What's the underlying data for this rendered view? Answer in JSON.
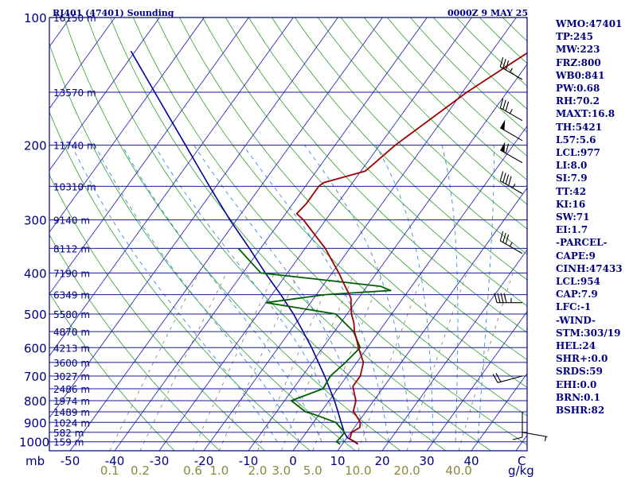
{
  "header": {
    "station": "RJ401 (47401) Sounding",
    "time": "0000Z  9 MAY 25"
  },
  "colors": {
    "frame": "#000080",
    "temperature": "#a00000",
    "dewpoint": "#006000",
    "parcel": "#0000a0",
    "isotherm": "#2d2db4",
    "dry_adiabat": "#2e9e2e",
    "moist_adiabat": "#3c8cd2",
    "mixing_ratio": "#808060",
    "mixing_ratio_label": "#8a8a3c",
    "stats_text": "#000080"
  },
  "stats": [
    "WMO:47401",
    "TP:245",
    "MW:223",
    "FRZ:800",
    "WB0:841",
    "PW:0.68",
    "RH:70.2",
    "MAXT:16.8",
    "TH:5421",
    "L57:5.6",
    "LCL:977",
    "LI:8.0",
    "SI:7.9",
    "TT:42",
    "KI:16",
    "SW:71",
    "EI:1.7",
    "-PARCEL-",
    "CAPE:9",
    "CINH:47433",
    "LCL:954",
    "CAP:7.9",
    "LFC:-1",
    "-WIND-",
    "STM:303/19",
    "HEL:24",
    "SHR+:0.0",
    "SRDS:59",
    "EHI:0.0",
    "BRN:0.1",
    "BSHR:82"
  ],
  "chart_data": {
    "type": "skew-t log-p sounding",
    "pressure_axis_unit": "mb",
    "pressure_ticks": [
      "100",
      "200",
      "300",
      "400",
      "500",
      "600",
      "700",
      "800",
      "900",
      "1000"
    ],
    "temperature_axis_unit": "C",
    "temperature_ticks": [
      "-50",
      "-40",
      "-30",
      "-20",
      "-10",
      "0",
      "10",
      "20",
      "30",
      "40"
    ],
    "mixing_ratio_unit": "g/kg",
    "mixing_ratio_ticks": [
      "0.1",
      "0.2",
      "0.6",
      "1.0",
      "2.0",
      "3.0",
      "5.0",
      "10.0",
      "20.0",
      "40.0"
    ],
    "height_levels": [
      {
        "p": 100,
        "label": "16150 m"
      },
      {
        "p": 150,
        "label": "13570 m"
      },
      {
        "p": 200,
        "label": "11740 m"
      },
      {
        "p": 250,
        "label": "10310 m"
      },
      {
        "p": 300,
        "label": "9140 m"
      },
      {
        "p": 350,
        "label": "8112 m"
      },
      {
        "p": 400,
        "label": "7190 m"
      },
      {
        "p": 450,
        "label": "6349 m"
      },
      {
        "p": 500,
        "label": "5580 m"
      },
      {
        "p": 550,
        "label": "4870 m"
      },
      {
        "p": 600,
        "label": "4213 m"
      },
      {
        "p": 650,
        "label": "3600 m"
      },
      {
        "p": 700,
        "label": "3027 m"
      },
      {
        "p": 750,
        "label": "2486 m"
      },
      {
        "p": 800,
        "label": "1974 m"
      },
      {
        "p": 850,
        "label": "1489 m"
      },
      {
        "p": 900,
        "label": "1024 m"
      },
      {
        "p": 950,
        "label": "582 m"
      },
      {
        "p": 1000,
        "label": "159 m"
      }
    ],
    "temperature_profile": [
      [
        1013,
        13.5
      ],
      [
        1000,
        12.5
      ],
      [
        985,
        10.8
      ],
      [
        950,
        10.2
      ],
      [
        925,
        11.2
      ],
      [
        900,
        10.5
      ],
      [
        860,
        8.0
      ],
      [
        850,
        7.2
      ],
      [
        800,
        6.0
      ],
      [
        770,
        4.5
      ],
      [
        740,
        3.0
      ],
      [
        700,
        3.0
      ],
      [
        650,
        1.5
      ],
      [
        600,
        -2.0
      ],
      [
        570,
        -4.0
      ],
      [
        550,
        -5.5
      ],
      [
        525,
        -7.0
      ],
      [
        500,
        -9.0
      ],
      [
        480,
        -10.3
      ],
      [
        460,
        -11.6
      ],
      [
        450,
        -12.6
      ],
      [
        425,
        -15.5
      ],
      [
        400,
        -18.5
      ],
      [
        350,
        -25.5
      ],
      [
        300,
        -35.0
      ],
      [
        290,
        -37.5
      ],
      [
        275,
        -37.0
      ],
      [
        250,
        -37.0
      ],
      [
        245,
        -36.5
      ],
      [
        233,
        -30.5
      ],
      [
        230,
        -29.0
      ],
      [
        200,
        -26.5
      ],
      [
        150,
        -19.0
      ],
      [
        120,
        -11.5
      ],
      [
        100,
        -4.0
      ],
      [
        96,
        -1.0
      ]
    ],
    "dewpoint_profile": [
      [
        1013,
        9.5
      ],
      [
        1000,
        8.3
      ],
      [
        975,
        8.5
      ],
      [
        950,
        8.6
      ],
      [
        925,
        6.8
      ],
      [
        900,
        5.0
      ],
      [
        860,
        -1.5
      ],
      [
        850,
        -3.5
      ],
      [
        800,
        -8.5
      ],
      [
        780,
        -6.5
      ],
      [
        750,
        -3.3
      ],
      [
        700,
        -3.7
      ],
      [
        650,
        -2.5
      ],
      [
        600,
        -1.6
      ],
      [
        550,
        -5.7
      ],
      [
        500,
        -12.5
      ],
      [
        470,
        -30.0
      ],
      [
        460,
        -24.0
      ],
      [
        450,
        -18.0
      ],
      [
        440,
        -4.0
      ],
      [
        430,
        -7.0
      ],
      [
        400,
        -36.0
      ],
      [
        350,
        -45.0
      ]
    ],
    "parcel_profile": [
      [
        1013,
        13.5
      ],
      [
        1000,
        12.3
      ],
      [
        977,
        10.0
      ],
      [
        950,
        8.5
      ],
      [
        900,
        6.2
      ],
      [
        850,
        3.8
      ],
      [
        800,
        1.2
      ],
      [
        700,
        -5.0
      ],
      [
        600,
        -12.5
      ],
      [
        550,
        -17.0
      ],
      [
        500,
        -22.0
      ],
      [
        450,
        -28.0
      ],
      [
        400,
        -35.0
      ],
      [
        350,
        -42.5
      ],
      [
        300,
        -51.5
      ],
      [
        250,
        -61.5
      ],
      [
        200,
        -73.5
      ],
      [
        150,
        -89.0
      ],
      [
        120,
        -101.0
      ]
    ],
    "wind_barbs": [
      {
        "p": 140,
        "dir": 300,
        "speed": 35
      },
      {
        "p": 175,
        "dir": 300,
        "speed": 35
      },
      {
        "p": 195,
        "dir": 300,
        "speed": 50
      },
      {
        "p": 220,
        "dir": 300,
        "speed": 60
      },
      {
        "p": 260,
        "dir": 300,
        "speed": 45
      },
      {
        "p": 360,
        "dir": 300,
        "speed": 35
      },
      {
        "p": 470,
        "dir": 270,
        "speed": 45
      },
      {
        "p": 700,
        "dir": 255,
        "speed": 20
      },
      {
        "p": 850,
        "dir": 180,
        "speed": 10
      },
      {
        "p": 950,
        "dir": 100,
        "speed": 5
      }
    ]
  }
}
